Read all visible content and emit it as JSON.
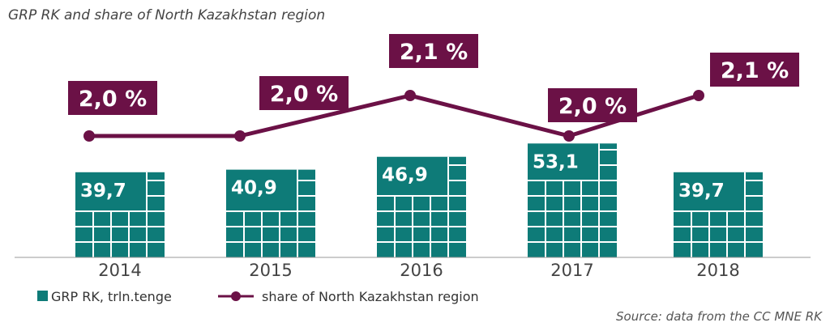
{
  "title": "GRP RK and share of North Kazakhstan region",
  "source": "Source: data from the CC MNE RK",
  "colors": {
    "bar": "#0e7b78",
    "line": "#6b1146",
    "grid_line": "#ffffff",
    "axis": "#999999"
  },
  "chart_data": {
    "type": "bar",
    "categories": [
      "2014",
      "2015",
      "2016",
      "2017",
      "2018"
    ],
    "series": [
      {
        "name": "GRP RK, trln.tenge",
        "type": "bar",
        "values": [
          39.7,
          40.9,
          46.9,
          53.1,
          39.7
        ],
        "labels": [
          "39,7",
          "40,9",
          "46,9",
          "53,1",
          "39,7"
        ]
      },
      {
        "name": "share of North Kazakhstan region",
        "type": "line",
        "values": [
          2.0,
          2.0,
          2.1,
          2.0,
          2.1
        ],
        "labels": [
          "2,0 %",
          "2,0 %",
          "2,1 %",
          "2,0 %",
          "2,1 %"
        ]
      }
    ],
    "legend_position": "bottom-left",
    "grid": false
  }
}
